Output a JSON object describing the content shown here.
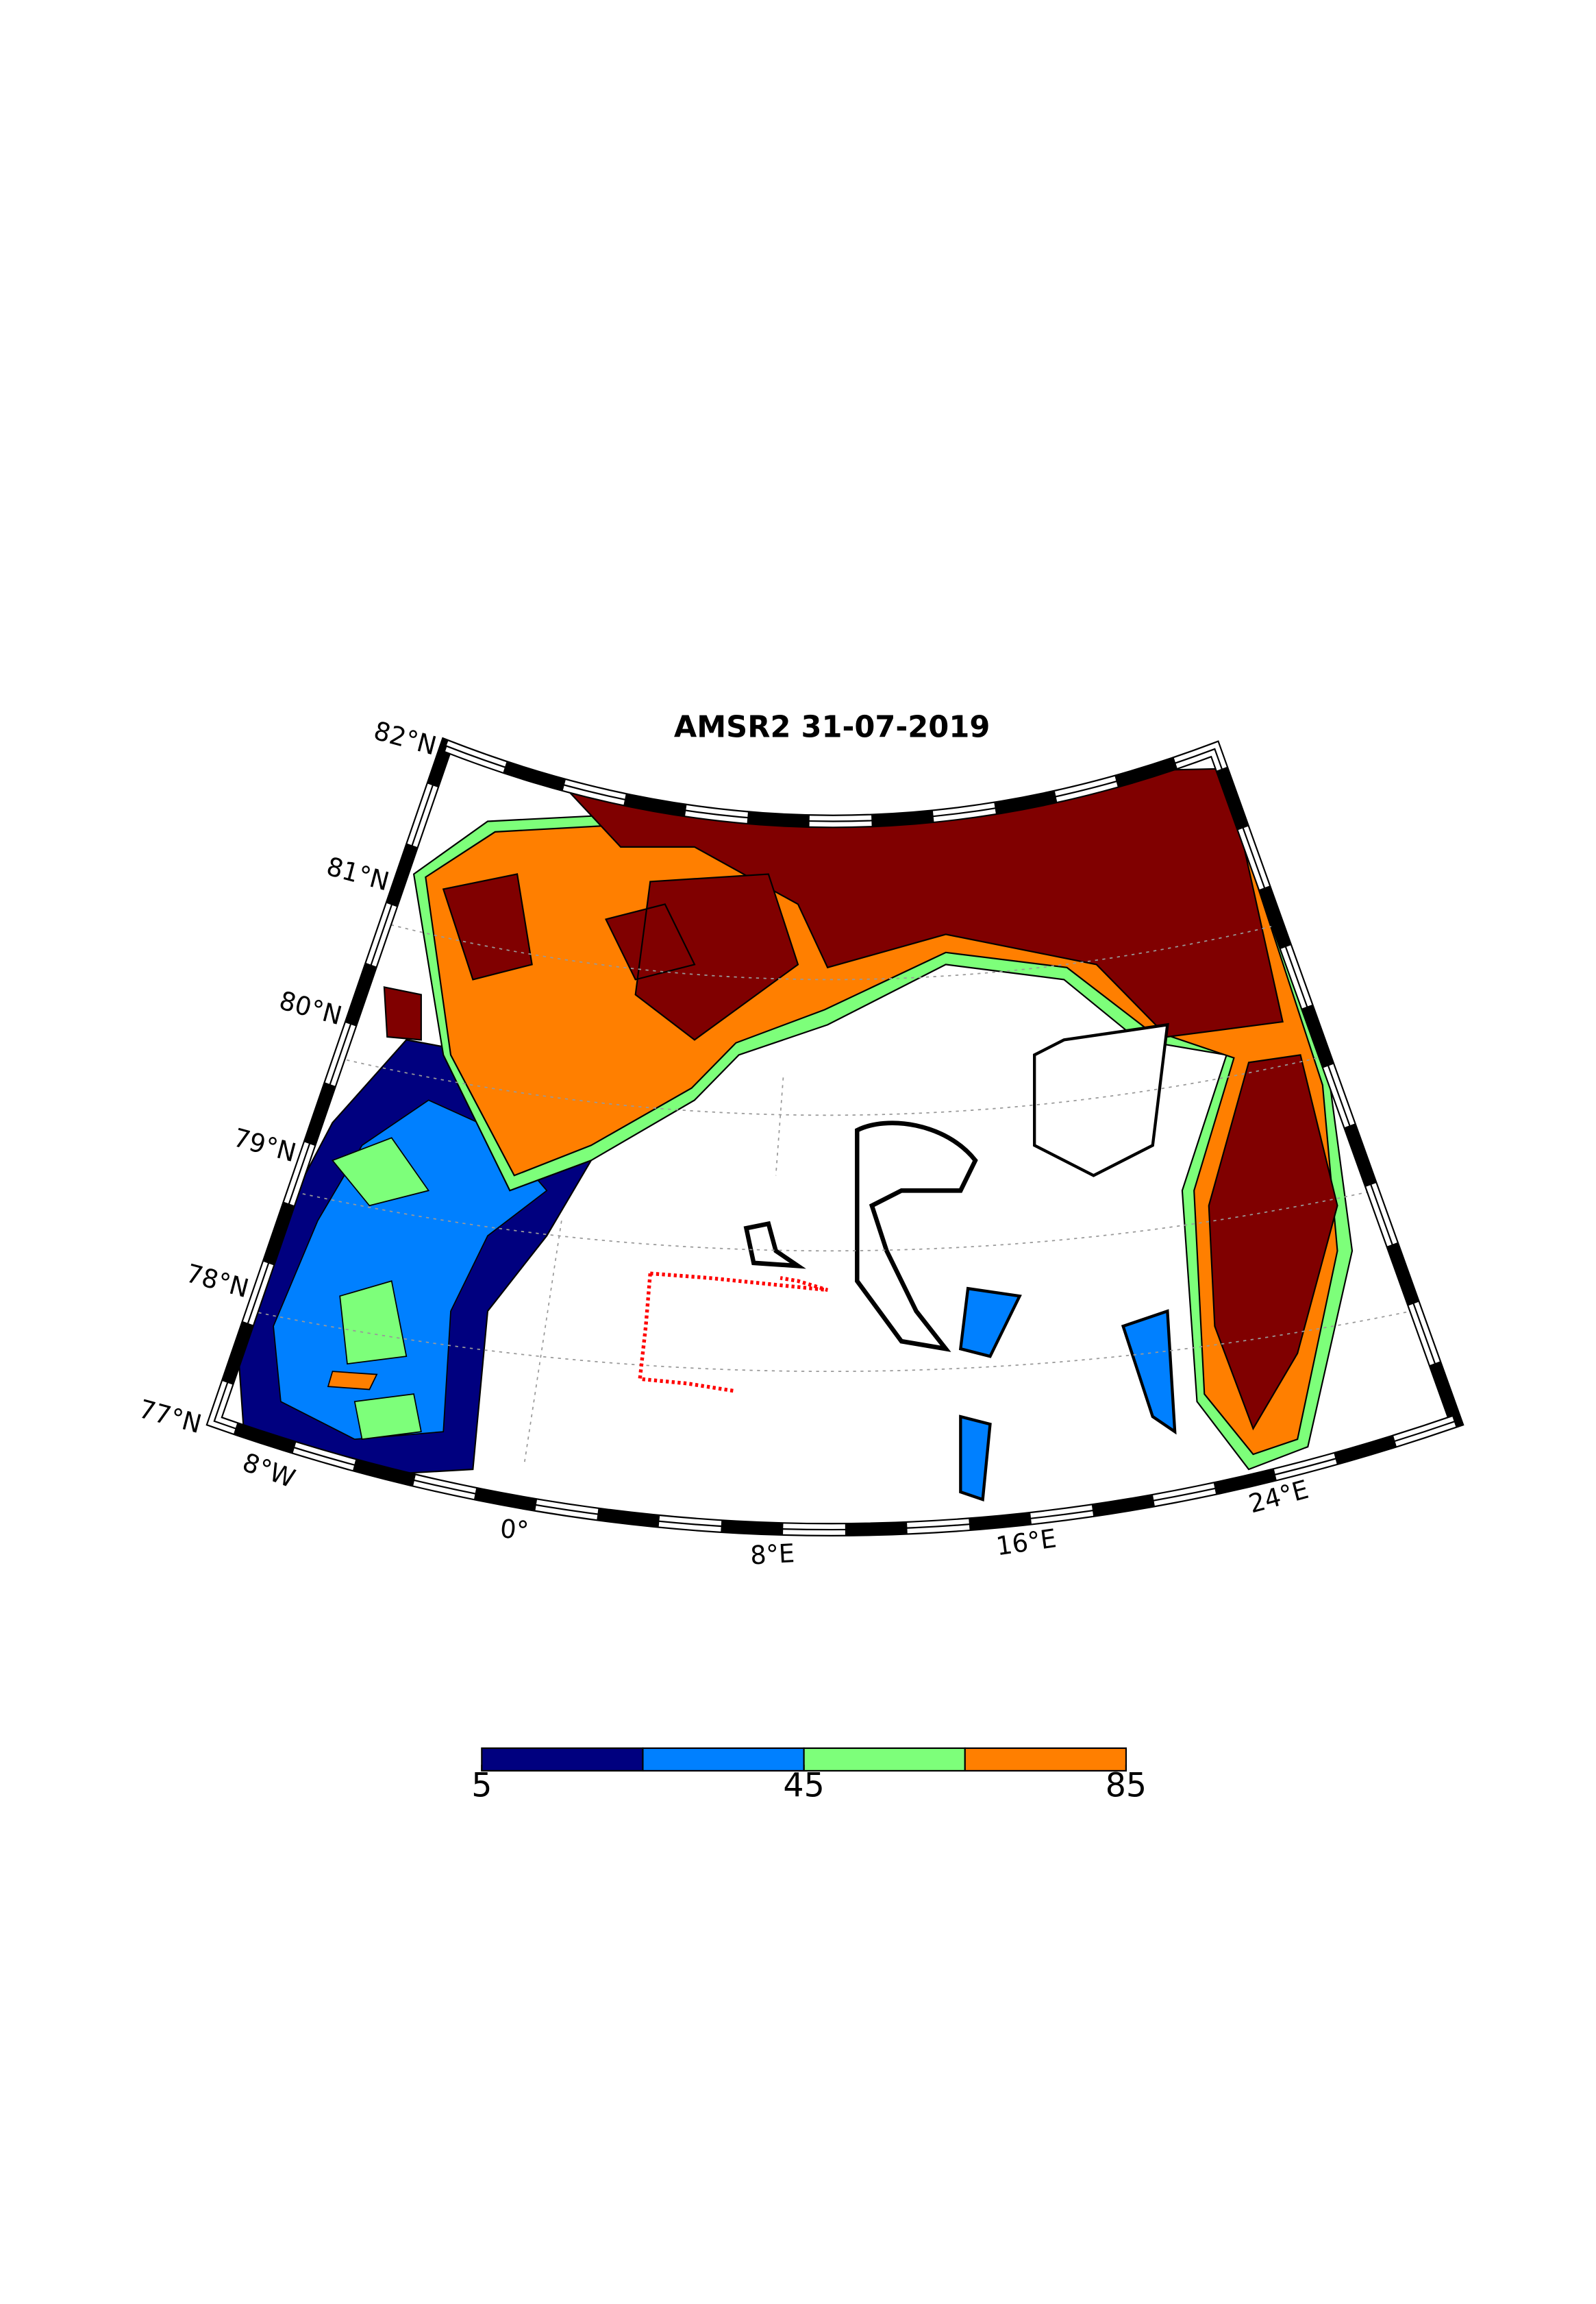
{
  "title": "AMSR2 31-07-2019",
  "latitude_labels": [
    "82°N",
    "81°N",
    "80°N",
    "79°N",
    "78°N",
    "77°N"
  ],
  "longitude_labels": [
    "8°W",
    "0°",
    "8°E",
    "16°E",
    "24°E"
  ],
  "colorbar": {
    "range": [
      5,
      85
    ],
    "ticks": [
      5,
      45,
      85
    ],
    "colors": [
      "#00007f",
      "#0080ff",
      "#7dff7a",
      "#ff7f00"
    ]
  }
}
